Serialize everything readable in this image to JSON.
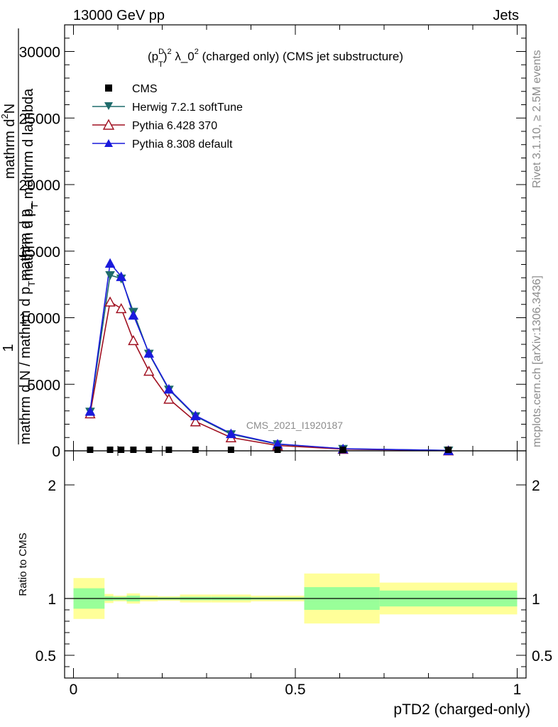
{
  "header": {
    "left": "13000 GeV pp",
    "right": "Jets"
  },
  "side_labels": {
    "rivet": "Rivet 3.1.10, ≥ 2.5M events",
    "mcplots": "mcplots.cern.ch [arXiv:1306.3436]"
  },
  "watermark": "CMS_2021_I1920187",
  "chart_data": [
    {
      "type": "line",
      "title_parts": {
        "p": "(p",
        "sup_d": "D",
        "sub_t": "T",
        "after_paren": ")",
        "sup_2a": "2",
        "lambda": " λ_0",
        "sup_2b": "2",
        "rest": " (charged only) (CMS jet substructure)"
      },
      "ylabel": {
        "line1": "1",
        "line2": "mathrm d N / mathrm d p",
        "line2_sub": "T",
        "line2_end": "mathrm d p_",
        "line3_top": "mathrm d",
        "line3_sup": "2",
        "line3_N": "N",
        "line4": "mathrm d p",
        "line4_sub": "T",
        "line4_end": " mathrm d lambda"
      },
      "xlabel": "pTD2 (charged-only)",
      "xlim": [
        -0.02,
        1.02
      ],
      "ylim": [
        0,
        32000
      ],
      "yticks": [
        0,
        5000,
        10000,
        15000,
        20000,
        25000,
        30000
      ],
      "ytick_labels": [
        "0",
        "5000",
        "10000",
        "15000",
        "20000",
        "25000",
        "30000"
      ],
      "legend_position": "top-left",
      "legend": [
        {
          "name": "CMS",
          "marker": "square",
          "color": "#000000"
        },
        {
          "name": "Herwig 7.2.1 softTune",
          "marker": "triangle-down",
          "color": "#1f6b6b"
        },
        {
          "name": "Pythia 6.428 370",
          "marker": "triangle-up-open",
          "color": "#a01020"
        },
        {
          "name": "Pythia 8.308 default",
          "marker": "triangle-up",
          "color": "#1a1adc"
        }
      ],
      "cms_x": [
        0.0375,
        0.0825,
        0.1075,
        0.135,
        0.17,
        0.215,
        0.275,
        0.355,
        0.46,
        0.6075,
        0.845
      ],
      "series": [
        {
          "name": "Herwig 7.2.1 softTune",
          "x": [
            0.0375,
            0.0825,
            0.1075,
            0.135,
            0.17,
            0.215,
            0.275,
            0.355,
            0.46,
            0.6075,
            0.845
          ],
          "y": [
            2950,
            13200,
            12950,
            10450,
            7300,
            4600,
            2600,
            1250,
            500,
            150,
            30
          ]
        },
        {
          "name": "Pythia 6.428 370",
          "x": [
            0.0375,
            0.0825,
            0.1075,
            0.135,
            0.17,
            0.215,
            0.275,
            0.355,
            0.46,
            0.6075,
            0.845
          ],
          "y": [
            2800,
            11200,
            10700,
            8300,
            6000,
            3900,
            2200,
            1000,
            400,
            130,
            20
          ]
        },
        {
          "name": "Pythia 8.308 default",
          "x": [
            0.0375,
            0.0825,
            0.1075,
            0.135,
            0.17,
            0.215,
            0.275,
            0.355,
            0.46,
            0.6075,
            0.845
          ],
          "y": [
            2980,
            14100,
            13100,
            10200,
            7350,
            4650,
            2650,
            1300,
            520,
            160,
            30
          ]
        }
      ]
    },
    {
      "type": "area",
      "ylabel": "Ratio to CMS",
      "xlabel": "pTD2 (charged-only)",
      "xlim": [
        -0.02,
        1.02
      ],
      "ylim": [
        0.3,
        2.3
      ],
      "yticks": [
        0.5,
        1,
        2
      ],
      "ytick_labels": [
        "0.5",
        "1",
        "2"
      ],
      "xticks": [
        0,
        0.5,
        1
      ],
      "xtick_labels": [
        "0",
        "0.5",
        "1"
      ],
      "bins": [
        {
          "lo": 0.0,
          "hi": 0.07,
          "inner": [
            0.91,
            1.09
          ],
          "outer": [
            0.82,
            1.18
          ]
        },
        {
          "lo": 0.07,
          "hi": 0.09,
          "inner": [
            0.98,
            1.02
          ],
          "outer": [
            0.96,
            1.04
          ]
        },
        {
          "lo": 0.09,
          "hi": 0.12,
          "inner": [
            0.985,
            1.015
          ],
          "outer": [
            0.975,
            1.025
          ]
        },
        {
          "lo": 0.12,
          "hi": 0.15,
          "inner": [
            0.975,
            1.025
          ],
          "outer": [
            0.955,
            1.045
          ]
        },
        {
          "lo": 0.15,
          "hi": 0.19,
          "inner": [
            0.99,
            1.01
          ],
          "outer": [
            0.975,
            1.025
          ]
        },
        {
          "lo": 0.19,
          "hi": 0.24,
          "inner": [
            0.99,
            1.01
          ],
          "outer": [
            0.98,
            1.02
          ]
        },
        {
          "lo": 0.24,
          "hi": 0.31,
          "inner": [
            0.985,
            1.015
          ],
          "outer": [
            0.965,
            1.035
          ]
        },
        {
          "lo": 0.31,
          "hi": 0.4,
          "inner": [
            0.985,
            1.015
          ],
          "outer": [
            0.965,
            1.035
          ]
        },
        {
          "lo": 0.4,
          "hi": 0.52,
          "inner": [
            0.99,
            1.01
          ],
          "outer": [
            0.975,
            1.025
          ]
        },
        {
          "lo": 0.52,
          "hi": 0.69,
          "inner": [
            0.9,
            1.1
          ],
          "outer": [
            0.78,
            1.22
          ]
        },
        {
          "lo": 0.69,
          "hi": 1.0,
          "inner": [
            0.93,
            1.07
          ],
          "outer": [
            0.86,
            1.14
          ]
        }
      ]
    }
  ]
}
